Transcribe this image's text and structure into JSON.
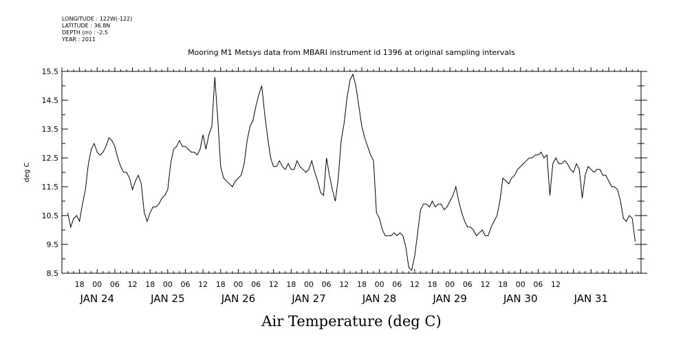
{
  "header": {
    "longitude": "LONGITUDE : 122W(-122)",
    "latitude": "LATITUDE : 36.8N",
    "depth": "DEPTH (m) : -2.5",
    "year": "YEAR : 2011"
  },
  "chart_data": {
    "type": "line",
    "title": "Mooring M1 Metsys data from MBARI instrument id 1396 at original sampling intervals",
    "xlabel": "Air Temperature (deg C)",
    "ylabel": "deg C",
    "ylim": [
      8.5,
      15.5
    ],
    "yticks": [
      "8.5",
      "9.5",
      "10.5",
      "11.5",
      "12.5",
      "13.5",
      "14.5",
      "15.5"
    ],
    "xlim_hours": [
      12,
      209
    ],
    "hour_tick_labels": [
      "18",
      "00",
      "06",
      "12",
      "18",
      "00",
      "06",
      "12",
      "18",
      "00",
      "06",
      "12",
      "18",
      "00",
      "06",
      "12",
      "18",
      "00",
      "06",
      "12",
      "18",
      "00",
      "06",
      "12",
      "18",
      "00",
      "06",
      "12"
    ],
    "day_labels": [
      "JAN 24",
      "JAN 25",
      "JAN 26",
      "JAN 27",
      "JAN 28",
      "JAN 29",
      "JAN 30",
      "JAN 31"
    ],
    "x_hours": [
      14,
      15,
      16,
      17,
      18,
      19,
      20,
      21,
      22,
      23,
      24,
      25,
      26,
      27,
      28,
      29,
      30,
      31,
      32,
      33,
      34,
      35,
      36,
      37,
      38,
      39,
      40,
      41,
      42,
      43,
      44,
      45,
      46,
      47,
      48,
      49,
      50,
      51,
      52,
      53,
      54,
      55,
      56,
      57,
      58,
      59,
      60,
      61,
      62,
      63,
      64,
      65,
      66,
      67,
      68,
      69,
      70,
      71,
      72,
      73,
      74,
      75,
      76,
      77,
      78,
      79,
      80,
      81,
      82,
      83,
      84,
      85,
      86,
      87,
      88,
      89,
      90,
      91,
      92,
      93,
      94,
      95,
      96,
      97,
      98,
      99,
      100,
      101,
      102,
      103,
      104,
      105,
      106,
      107,
      108,
      109,
      110,
      111,
      112,
      113,
      114,
      115,
      116,
      117,
      118,
      119,
      120,
      121,
      122,
      123,
      124,
      125,
      126,
      127,
      128,
      129,
      130,
      131,
      132,
      133,
      134,
      135,
      136,
      137,
      138,
      139,
      140,
      141,
      142,
      143,
      144,
      145,
      146,
      147,
      148,
      149,
      150,
      151,
      152,
      153,
      154,
      155,
      156,
      157,
      158,
      159,
      160,
      161,
      162,
      163,
      164,
      165,
      166,
      167,
      168,
      169,
      170,
      171,
      172,
      173,
      174,
      175,
      176,
      177,
      178,
      179,
      180,
      181,
      182,
      183,
      184,
      185,
      186,
      187,
      188,
      189,
      190,
      191,
      192,
      193,
      194,
      195,
      196,
      197,
      198,
      199,
      200,
      201,
      202,
      203,
      204,
      205,
      206,
      207
    ],
    "series": [
      {
        "values": [
          10.6,
          10.1,
          10.4,
          10.5,
          10.3,
          10.9,
          11.4,
          12.3,
          12.8,
          13.0,
          12.7,
          12.6,
          12.7,
          12.9,
          13.2,
          13.1,
          12.9,
          12.5,
          12.2,
          12.0,
          12.0,
          11.8,
          11.4,
          11.7,
          11.9,
          11.6,
          10.6,
          10.3,
          10.6,
          10.8,
          10.8,
          10.9,
          11.1,
          11.2,
          11.4,
          12.3,
          12.8,
          12.9,
          13.1,
          12.9,
          12.9,
          12.8,
          12.7,
          12.7,
          12.6,
          12.8,
          13.3,
          12.8,
          13.3,
          13.6,
          15.3,
          13.9,
          12.2,
          11.8,
          11.7,
          11.6,
          11.5,
          11.7,
          11.8,
          11.9,
          12.3,
          13.1,
          13.6,
          13.8,
          14.3,
          14.7,
          15.0,
          14.0,
          13.2,
          12.5,
          12.2,
          12.2,
          12.4,
          12.2,
          12.1,
          12.3,
          12.1,
          12.1,
          12.4,
          12.2,
          12.1,
          12.0,
          12.1,
          12.4,
          12.0,
          11.7,
          11.3,
          11.2,
          12.5,
          11.9,
          11.4,
          11.0,
          11.8,
          13.1,
          13.7,
          14.6,
          15.2,
          15.4,
          15.0,
          14.3,
          13.6,
          13.2,
          12.9,
          12.6,
          12.4,
          10.6,
          10.4,
          10.0,
          9.8,
          9.8,
          9.8,
          9.9,
          9.8,
          9.9,
          9.8,
          9.4,
          8.7,
          8.6,
          9.1,
          9.9,
          10.7,
          10.9,
          10.9,
          10.8,
          11.0,
          10.8,
          10.9,
          10.9,
          10.7,
          10.8,
          11.0,
          11.2,
          11.5,
          11.0,
          10.6,
          10.3,
          10.1,
          10.1,
          10.0,
          9.8,
          9.9,
          10.0,
          9.8,
          9.8,
          10.1,
          10.3,
          10.5,
          11.0,
          11.8,
          11.7,
          11.6,
          11.8,
          11.9,
          12.1,
          12.2,
          12.3,
          12.4,
          12.5,
          12.5,
          12.6,
          12.6,
          12.7,
          12.5,
          12.6,
          11.2,
          12.3,
          12.5,
          12.3,
          12.3,
          12.4,
          12.3,
          12.1,
          12.0,
          12.3,
          12.1,
          11.1,
          11.9,
          12.2,
          12.1,
          12.0,
          12.1,
          12.1,
          11.9,
          11.9,
          11.7,
          11.5,
          11.5,
          11.4,
          11.0,
          10.4,
          10.3,
          10.5,
          10.4,
          9.6
        ]
      }
    ]
  }
}
